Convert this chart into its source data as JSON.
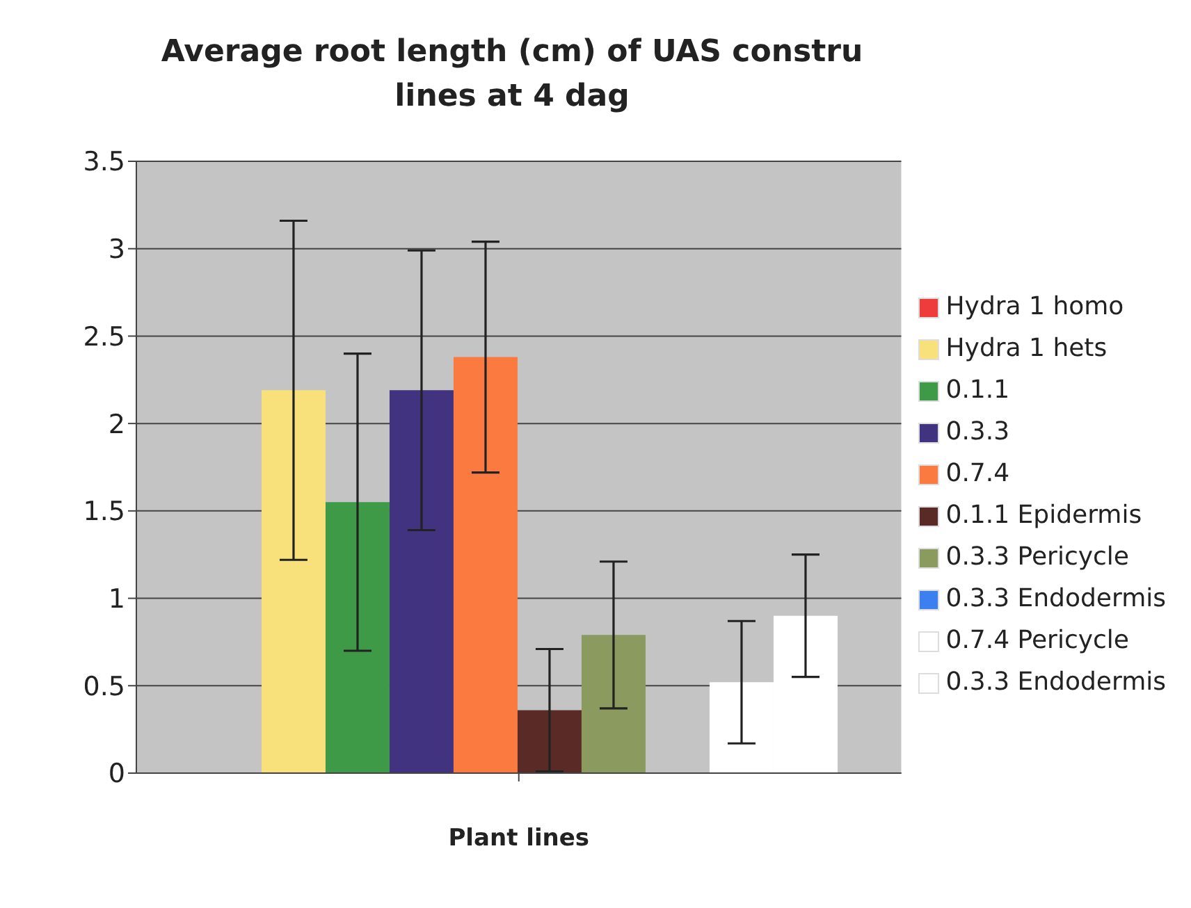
{
  "chart_data": {
    "type": "bar",
    "title": "Average root length (cm) of UAS constru lines at 4 dag",
    "xlabel": "Plant lines",
    "categories": [
      null
    ],
    "series": [
      {
        "name": "Hydra 1 homo",
        "color": "#ee3b3b",
        "values": [
          null
        ],
        "errors": [
          null
        ]
      },
      {
        "name": "Hydra 1 hets",
        "color": "#f8e07a",
        "values": [
          2.19
        ],
        "errors": [
          0.97
        ]
      },
      {
        "name": "0.1.1",
        "color": "#3e9a47",
        "values": [
          1.55
        ],
        "errors": [
          0.85
        ]
      },
      {
        "name": "0.3.3",
        "color": "#41337f",
        "values": [
          2.19
        ],
        "errors": [
          0.8
        ]
      },
      {
        "name": "0.7.4",
        "color": "#fb7a40",
        "values": [
          2.38
        ],
        "errors": [
          0.66
        ]
      },
      {
        "name": "0.1.1 Epidermis",
        "color": "#5a2b26",
        "values": [
          0.36
        ],
        "errors": [
          0.35
        ]
      },
      {
        "name": "0.3.3 Pericycle",
        "color": "#8b9a5e",
        "values": [
          0.79
        ],
        "errors": [
          0.42
        ]
      },
      {
        "name": "0.3.3 Endodermis",
        "color": "#3b7ff0",
        "values": [
          null
        ],
        "errors": [
          null
        ]
      },
      {
        "name": "0.7.4 Pericycle",
        "color": "#ffffff",
        "values": [
          0.52
        ],
        "errors": [
          0.35
        ]
      },
      {
        "name": "0.3.3 Endodermis",
        "color": "#ffffff",
        "values": [
          0.9
        ],
        "errors": [
          0.35
        ]
      }
    ],
    "ylim": [
      0,
      3.5
    ],
    "yticks": [
      0,
      0.5,
      1,
      1.5,
      2,
      2.5,
      3,
      3.5
    ],
    "grid": "y",
    "legend": "right"
  }
}
